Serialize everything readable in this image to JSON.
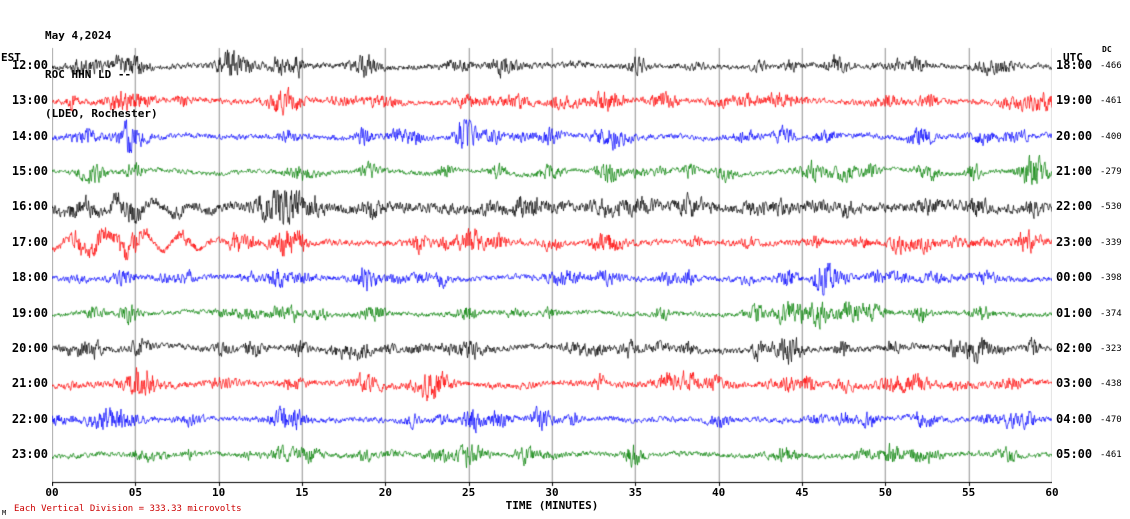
{
  "header": {
    "date": "May 4,2024",
    "station": "ROC HHN LD --",
    "location": "(LDEO, Rochester)"
  },
  "axes": {
    "left_label": "EST",
    "right_label": "UTC",
    "dc_label": "DC",
    "x_ticks": [
      "00",
      "05",
      "10",
      "15",
      "20",
      "25",
      "30",
      "35",
      "40",
      "45",
      "50",
      "55",
      "60"
    ],
    "x_label": "TIME (MINUTES)"
  },
  "footer": {
    "scale_note": "Each Vertical Division =  333.33 microvolts",
    "note_color": "#cc0000",
    "watermark": "M"
  },
  "chart_data": {
    "type": "line",
    "title": "ROC HHN LD -- (LDEO, Rochester) helicorder record, May 4,2024",
    "x_range_minutes": [
      0,
      60
    ],
    "x_tick_interval_minutes": 5,
    "vertical_division_microvolts": 333.33,
    "grid": "vertical lines every 5 minutes",
    "trace_color_cycle": [
      "#000000",
      "#ff0000",
      "#0000ff",
      "#008000"
    ],
    "rows": [
      {
        "est": "12:00",
        "utc": "18:00",
        "dc": "-466",
        "color": "#000000"
      },
      {
        "est": "13:00",
        "utc": "19:00",
        "dc": "-461",
        "color": "#ff0000"
      },
      {
        "est": "14:00",
        "utc": "20:00",
        "dc": "-400",
        "color": "#0000ff"
      },
      {
        "est": "15:00",
        "utc": "21:00",
        "dc": "-279",
        "color": "#008000"
      },
      {
        "est": "16:00",
        "utc": "22:00",
        "dc": "-530",
        "color": "#000000"
      },
      {
        "est": "17:00",
        "utc": "23:00",
        "dc": "-339",
        "color": "#ff0000"
      },
      {
        "est": "18:00",
        "utc": "00:00",
        "dc": "-398",
        "color": "#0000ff"
      },
      {
        "est": "19:00",
        "utc": "01:00",
        "dc": "-374",
        "color": "#008000"
      },
      {
        "est": "20:00",
        "utc": "02:00",
        "dc": "-323",
        "color": "#000000"
      },
      {
        "est": "21:00",
        "utc": "03:00",
        "dc": "-438",
        "color": "#ff0000"
      },
      {
        "est": "22:00",
        "utc": "04:00",
        "dc": "-470",
        "color": "#0000ff"
      },
      {
        "est": "23:00",
        "utc": "05:00",
        "dc": "-461",
        "color": "#008000"
      }
    ],
    "description": "Twelve one-hour seismic waveform traces (ambient noise with intermittent bursts); exact sample amplitudes are not labeled on the plot."
  }
}
